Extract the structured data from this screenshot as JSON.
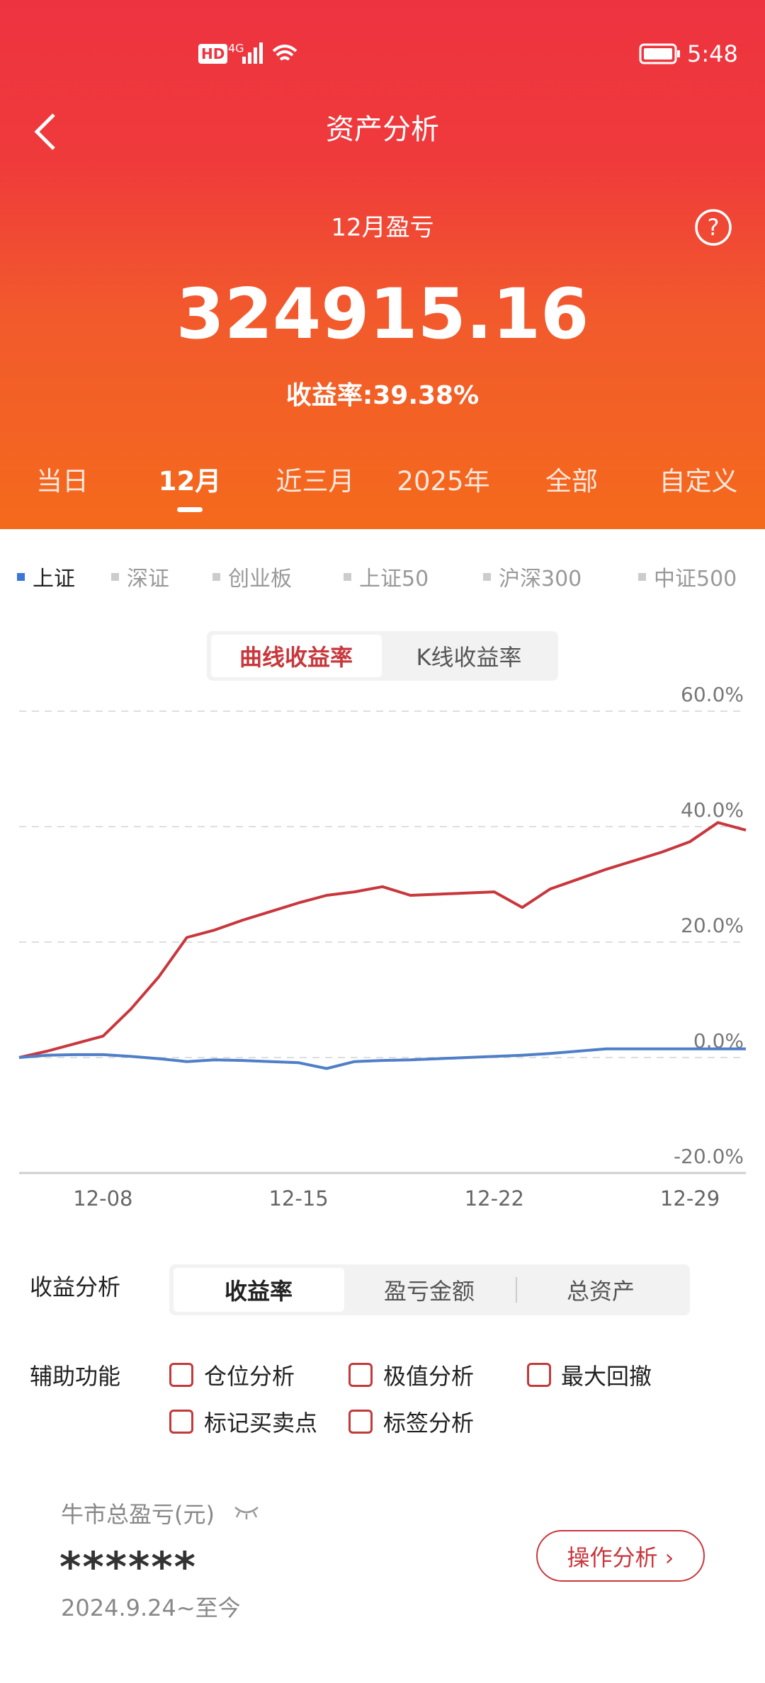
{
  "status_bar": {
    "badge": "HD",
    "network": "4G",
    "time": "5:48"
  },
  "header": {
    "title": "资产分析"
  },
  "summary": {
    "label": "12月盈亏",
    "amount": "324915.16",
    "return_label": "收益率:39.38%"
  },
  "period_tabs": {
    "items": [
      "当日",
      "12月",
      "近三月",
      "2025年",
      "全部",
      "自定义"
    ],
    "selected": 1
  },
  "index_tabs": {
    "items": [
      "上证",
      "深证",
      "创业板",
      "上证50",
      "沪深300",
      "中证500"
    ],
    "selected": 0
  },
  "chart_toggle": {
    "items": [
      "曲线收益率",
      "K线收益率"
    ],
    "selected": 0
  },
  "chart_data": {
    "type": "line",
    "categories": [
      null,
      null,
      null,
      "12-08",
      null,
      null,
      null,
      null,
      null,
      null,
      "12-15",
      null,
      null,
      null,
      null,
      null,
      null,
      "12-22",
      null,
      null,
      null,
      null,
      null,
      null,
      "12-29",
      null,
      null
    ],
    "series": [
      {
        "color": "#c8373c",
        "values": [
          0,
          1.1,
          2.4,
          3.7,
          8.4,
          14,
          20.8,
          22.1,
          23.8,
          25.3,
          26.8,
          28.1,
          28.7,
          29.6,
          28.1,
          28.3,
          28.5,
          28.7,
          26.0,
          29.2,
          30.9,
          32.6,
          34.1,
          35.6,
          37.4,
          40.7,
          39.4
        ]
      },
      {
        "color": "#4f7fc8",
        "values": [
          0,
          0.4,
          0.5,
          0.5,
          0.2,
          -0.2,
          -0.7,
          -0.4,
          -0.5,
          -0.7,
          -0.9,
          -1.9,
          -0.7,
          -0.5,
          -0.4,
          -0.2,
          0,
          0.2,
          0.4,
          0.7,
          1.1,
          1.5,
          1.5,
          1.5,
          1.5,
          1.5,
          1.5
        ]
      }
    ],
    "ylim": [
      -20,
      60
    ],
    "yticks": [
      {
        "value": 60,
        "label": "60.0%"
      },
      {
        "value": 40,
        "label": "40.0%"
      },
      {
        "value": 20,
        "label": "20.0%"
      },
      {
        "value": 0,
        "label": "0.0%"
      },
      {
        "value": -20,
        "label": "-20.0%"
      }
    ],
    "grid": true
  },
  "analysis": {
    "label": "收益分析",
    "items": [
      "收益率",
      "盈亏金额",
      "总资产"
    ],
    "selected": 0
  },
  "aux": {
    "label": "辅助功能",
    "items": [
      "仓位分析",
      "极值分析",
      "最大回撤",
      "标记买卖点",
      "标签分析"
    ]
  },
  "bull": {
    "label": "牛市总盈亏(元)",
    "value": "******",
    "range": "2024.9.24~至今",
    "button": "操作分析 ›"
  }
}
